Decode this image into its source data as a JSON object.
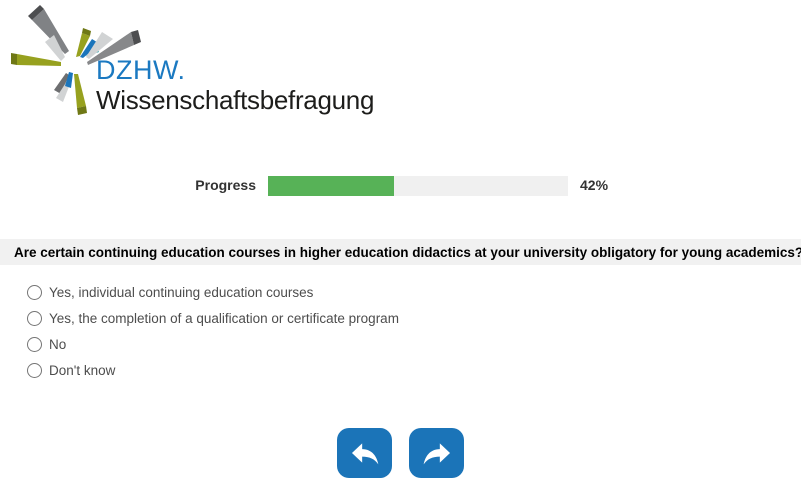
{
  "logo": {
    "brand": "DZHW.",
    "subtitle": "Wissenschaftsbefragung",
    "burst_icon": "starburst-logo-icon"
  },
  "progress": {
    "label": "Progress",
    "percent": 42,
    "percent_label": "42%"
  },
  "question": {
    "text": "Are certain continuing education courses in higher education didactics at your university obligatory for young academics?",
    "options": [
      {
        "label": "Yes, individual continuing education courses",
        "selected": false
      },
      {
        "label": "Yes, the completion of a qualification or certificate program",
        "selected": false
      },
      {
        "label": "No",
        "selected": false
      },
      {
        "label": "Don't know",
        "selected": false
      }
    ]
  },
  "nav": {
    "back_icon": "back-arrow",
    "forward_icon": "forward-arrow"
  },
  "colors": {
    "accent_blue": "#1b74b8",
    "progress_green": "#57b257",
    "progress_track": "#f0f0f0",
    "question_bg": "#f1f1f1",
    "logo_blue": "#1b79c1",
    "logo_olive": "#97a11f",
    "logo_gray": "#808285",
    "logo_dark_gray": "#4d4e50",
    "logo_light_gray": "#d1d3d4"
  }
}
